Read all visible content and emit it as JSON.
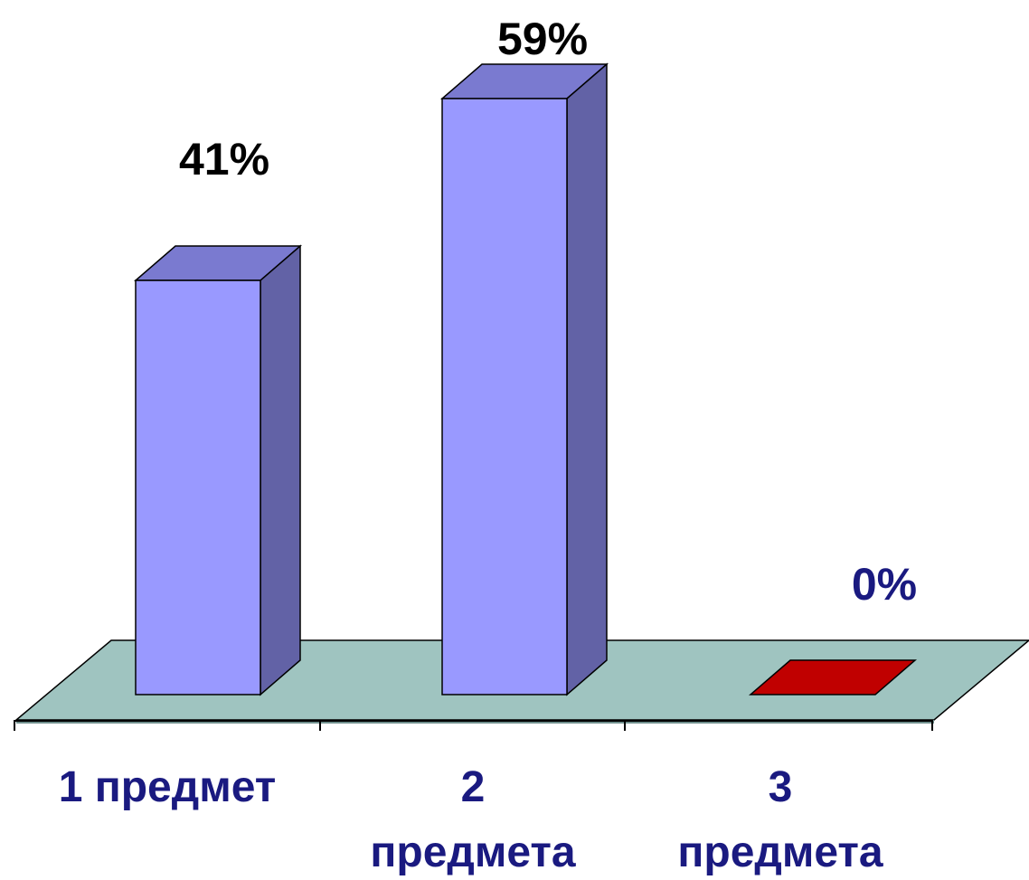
{
  "chart_data": {
    "type": "bar",
    "style": "3d",
    "categories": [
      "1 предмет",
      "2 предмета",
      "3 предмета"
    ],
    "values": [
      41,
      59,
      0
    ],
    "data_labels": [
      "41%",
      "59%",
      "0%"
    ],
    "unit": "%",
    "ylim": [
      0,
      59
    ],
    "grid": false,
    "legend": "none",
    "colors": {
      "bar_front": "#9999ff",
      "bar_side": "#6262a6",
      "bar_top": "#7a7ad0",
      "zero_bar": "#c00000",
      "floor": "#9fc4c0",
      "floor_dark": "#6f8f8c",
      "category_label": "#1a1a80",
      "value_label_default": "#000000",
      "value_label_zero": "#1a1a80"
    }
  }
}
